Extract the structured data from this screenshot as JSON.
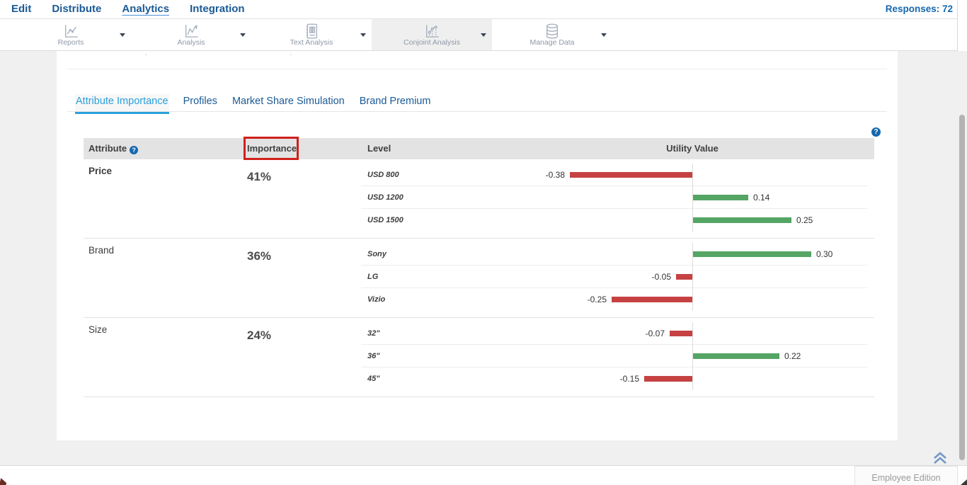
{
  "nav": {
    "items": [
      "Edit",
      "Distribute",
      "Analytics",
      "Integration"
    ],
    "active": "Analytics",
    "responses_label": "Responses: 72"
  },
  "toolbar": {
    "items": [
      {
        "label": "Reports",
        "icon": "reports-chart-icon",
        "active": false
      },
      {
        "label": "Analysis",
        "icon": "analysis-chart-icon",
        "active": false
      },
      {
        "label": "Text Analysis",
        "icon": "text-document-icon",
        "active": false
      },
      {
        "label": "Conjoint Analysis",
        "icon": "scatter-chart-icon",
        "active": true
      },
      {
        "label": "Manage Data",
        "icon": "database-icon",
        "active": false
      }
    ]
  },
  "tabs": {
    "items": [
      "Attribute Importance",
      "Profiles",
      "Market Share Simulation",
      "Brand Premium"
    ],
    "active": "Attribute Importance"
  },
  "table": {
    "headers": {
      "attribute": "Attribute",
      "importance": "Importance",
      "level": "Level",
      "utility": "Utility Value"
    },
    "groups": [
      {
        "attribute": "Price",
        "importance": "41%",
        "emphasized": true,
        "levels": [
          {
            "label": "USD 800",
            "value": -0.38,
            "display": "-0.38"
          },
          {
            "label": "USD 1200",
            "value": 0.14,
            "display": "0.14"
          },
          {
            "label": "USD 1500",
            "value": 0.25,
            "display": "0.25"
          }
        ]
      },
      {
        "attribute": "Brand",
        "importance": "36%",
        "emphasized": false,
        "levels": [
          {
            "label": "Sony",
            "value": 0.3,
            "display": "0.30"
          },
          {
            "label": "LG",
            "value": -0.05,
            "display": "-0.05"
          },
          {
            "label": "Vizio",
            "value": -0.25,
            "display": "-0.25"
          }
        ]
      },
      {
        "attribute": "Size",
        "importance": "24%",
        "emphasized": false,
        "levels": [
          {
            "label": "32\"",
            "value": -0.07,
            "display": "-0.07"
          },
          {
            "label": "36\"",
            "value": 0.22,
            "display": "0.22"
          },
          {
            "label": "45\"",
            "value": -0.15,
            "display": "-0.15"
          }
        ]
      }
    ]
  },
  "footer": {
    "edition_label": "Employee Edition"
  },
  "colors": {
    "positive_bar": "#55a565",
    "negative_bar": "#c64242",
    "active_tab": "#2ba0dc",
    "nav_text": "#1a5a96",
    "annotation_red": "#d0211c"
  }
}
